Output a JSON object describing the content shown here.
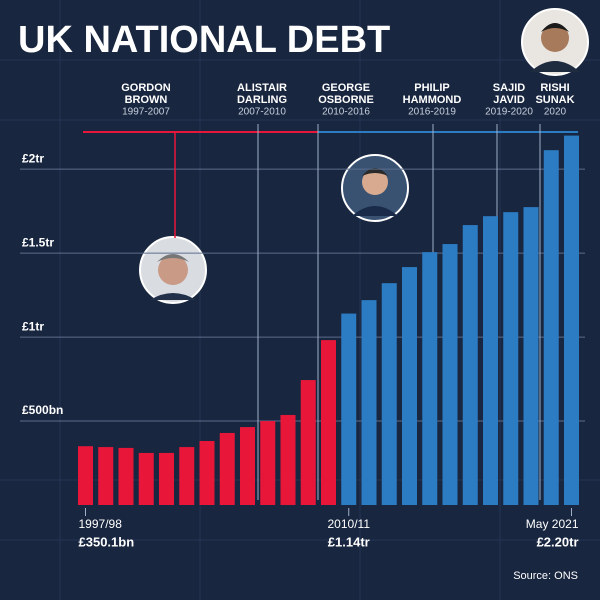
{
  "chart_data": {
    "type": "bar",
    "title": "UK NATIONAL DEBT",
    "source": "Source: ONS",
    "categories": [
      "1997/98",
      null,
      null,
      null,
      null,
      null,
      null,
      null,
      null,
      null,
      null,
      null,
      null,
      "2010/11",
      null,
      null,
      null,
      null,
      null,
      null,
      null,
      null,
      null,
      null,
      "May 2021"
    ],
    "values": [
      350.1,
      345,
      340,
      310,
      310,
      345,
      381,
      429,
      464,
      500,
      536,
      744,
      982,
      1140,
      1220,
      1321,
      1417,
      1506,
      1554,
      1667,
      1720,
      1744,
      1774,
      2113,
      2200
    ],
    "value_labels": [
      "£350.1bn",
      null,
      null,
      null,
      null,
      null,
      null,
      null,
      null,
      null,
      null,
      null,
      null,
      "£1.14tr",
      null,
      null,
      null,
      null,
      null,
      null,
      null,
      null,
      null,
      null,
      "£2.20tr"
    ],
    "colors": [
      "#e8173a",
      "#e8173a",
      "#e8173a",
      "#e8173a",
      "#e8173a",
      "#e8173a",
      "#e8173a",
      "#e8173a",
      "#e8173a",
      "#e8173a",
      "#e8173a",
      "#e8173a",
      "#e8173a",
      "#2c7cc4",
      "#2c7cc4",
      "#2c7cc4",
      "#2c7cc4",
      "#2c7cc4",
      "#2c7cc4",
      "#2c7cc4",
      "#2c7cc4",
      "#2c7cc4",
      "#2c7cc4",
      "#2c7cc4",
      "#2c7cc4"
    ],
    "ylim": [
      0,
      2400
    ],
    "yticks": [
      {
        "value": 500,
        "label": "£500bn"
      },
      {
        "value": 1000,
        "label": "£1tr"
      },
      {
        "value": 1500,
        "label": "£1.5tr"
      },
      {
        "value": 2000,
        "label": "£2tr"
      }
    ],
    "grid": true,
    "chancellors": [
      {
        "name_lines": [
          "GORDON",
          "BROWN"
        ],
        "years": "1997-2007"
      },
      {
        "name_lines": [
          "ALISTAIR",
          "DARLING"
        ],
        "years": "2007-2010"
      },
      {
        "name_lines": [
          "GEORGE",
          "OSBORNE"
        ],
        "years": "2010-2016"
      },
      {
        "name_lines": [
          "PHILIP",
          "HAMMOND"
        ],
        "years": "2016-2019"
      },
      {
        "name_lines": [
          "SAJID",
          "JAVID"
        ],
        "years": "2019-2020"
      },
      {
        "name_lines": [
          "RISHI",
          "SUNAK"
        ],
        "years": "2020"
      }
    ]
  }
}
